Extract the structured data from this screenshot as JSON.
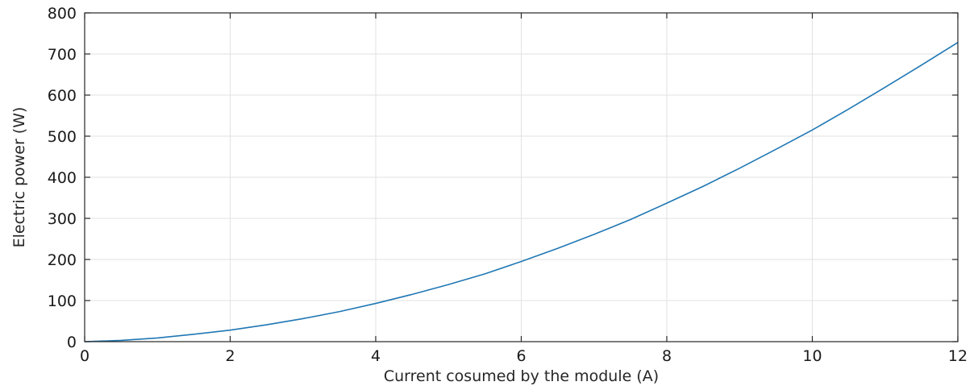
{
  "chart_data": {
    "type": "line",
    "title": "",
    "xlabel": "Current cosumed by the module (A)",
    "ylabel": "Electric power (W)",
    "xlim": [
      0,
      12
    ],
    "ylim": [
      0,
      800
    ],
    "xticks": [
      0,
      2,
      4,
      6,
      8,
      10,
      12
    ],
    "yticks": [
      0,
      100,
      200,
      300,
      400,
      500,
      600,
      700,
      800
    ],
    "grid": true,
    "legend": "none",
    "series": [
      {
        "color": "#1f77b4",
        "x": [
          0,
          0.5,
          1,
          1.5,
          2,
          2.5,
          3,
          3.5,
          4,
          4.5,
          5,
          5.5,
          6,
          6.5,
          7,
          7.5,
          8,
          8.5,
          9,
          9.5,
          10,
          10.5,
          11,
          11.5,
          12
        ],
        "y": [
          0,
          3,
          9,
          18,
          28,
          41,
          56,
          73,
          93,
          115,
          139,
          165,
          195,
          227,
          261,
          297,
          337,
          378,
          422,
          468,
          515,
          566,
          619,
          673,
          728
        ]
      }
    ]
  }
}
